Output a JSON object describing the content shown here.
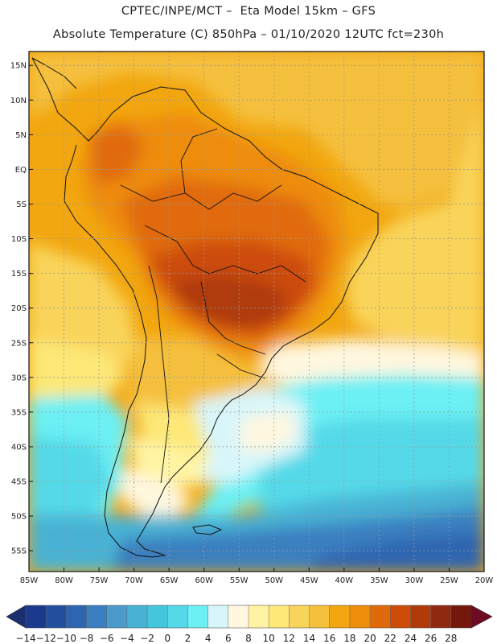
{
  "header": {
    "line1": "CPTEC/INPE/MCT –  Eta Model 15km – GFS",
    "line2": "Absolute Temperature (C) 850hPa – 01/10/2020 12UTC fct=230h"
  },
  "map": {
    "lat_labels": [
      "15N",
      "10N",
      "5N",
      "EQ",
      "5S",
      "10S",
      "15S",
      "20S",
      "25S",
      "30S",
      "35S",
      "40S",
      "45S",
      "50S",
      "55S"
    ],
    "lon_labels": [
      "85W",
      "80W",
      "75W",
      "70W",
      "65W",
      "60W",
      "55W",
      "50W",
      "45W",
      "40W",
      "35W",
      "30W",
      "25W",
      "20W"
    ],
    "lon_range": [
      -85,
      -20
    ],
    "lat_range": [
      17,
      -58
    ]
  },
  "colorbar": {
    "labels": [
      "-14",
      "-12",
      "-10",
      "-8",
      "-6",
      "-4",
      "-2",
      "0",
      "2",
      "4",
      "6",
      "8",
      "10",
      "12",
      "14",
      "16",
      "18",
      "20",
      "22",
      "24",
      "26",
      "28"
    ],
    "colors": [
      "#1a3b8c",
      "#23509e",
      "#2d65b0",
      "#3a7fbf",
      "#4a9bcb",
      "#48b2d4",
      "#44c6de",
      "#55d9e8",
      "#6cf0f4",
      "#d8f6fa",
      "#fff7df",
      "#fff4a3",
      "#fde878",
      "#f9d45a",
      "#f5c03c",
      "#f2a60f",
      "#ee8c0b",
      "#e06a08",
      "#cc4c08",
      "#b03a0a",
      "#8f2a10",
      "#74180c"
    ]
  }
}
